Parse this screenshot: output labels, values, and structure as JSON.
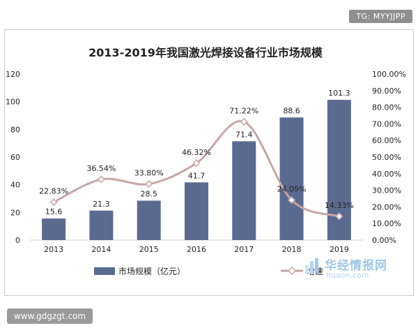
{
  "badge": {
    "text": "TG: MYYJJPP"
  },
  "footer": {
    "url": "www.gdgzgt.com"
  },
  "watermark": {
    "brand": "华经情报网",
    "domain": "huaon.com"
  },
  "colors": {
    "bar": "#5b6b8f",
    "line": "#c9a4a6",
    "marker_fill": "#ffffff",
    "marker_stroke": "#c9a4a6",
    "axis": "#d0d0d0",
    "text": "#222222"
  },
  "chart_data": {
    "type": "bar",
    "title": "2013-2019年我国激光焊接设备行业市场规模",
    "categories": [
      "2013",
      "2014",
      "2015",
      "2016",
      "2017",
      "2018",
      "2019"
    ],
    "series": [
      {
        "name": "市场规模（亿元）",
        "type": "bar",
        "axis": "left",
        "values": [
          15.6,
          21.3,
          28.5,
          41.7,
          71.4,
          88.6,
          101.3
        ],
        "labels": [
          "15.6",
          "21.3",
          "28.5",
          "41.7",
          "71.4",
          "88.6",
          "101.3"
        ]
      },
      {
        "name": "增速",
        "type": "line",
        "axis": "right",
        "values": [
          22.83,
          36.54,
          33.8,
          46.32,
          71.22,
          24.09,
          14.33
        ],
        "labels": [
          "22.83%",
          "36.54%",
          "33.80%",
          "46.32%",
          "71.22%",
          "24.09%",
          "14.33%"
        ]
      }
    ],
    "yleft": {
      "lim": [
        0,
        120
      ],
      "ticks": [
        "0",
        "20",
        "40",
        "60",
        "80",
        "100",
        "120"
      ]
    },
    "yright": {
      "lim": [
        0,
        100
      ],
      "ticks": [
        "0.00%",
        "10.00%",
        "20.00%",
        "30.00%",
        "40.00%",
        "50.00%",
        "60.00%",
        "70.00%",
        "80.00%",
        "90.00%",
        "100.00%"
      ]
    },
    "grid": false,
    "legend": "bottom"
  }
}
